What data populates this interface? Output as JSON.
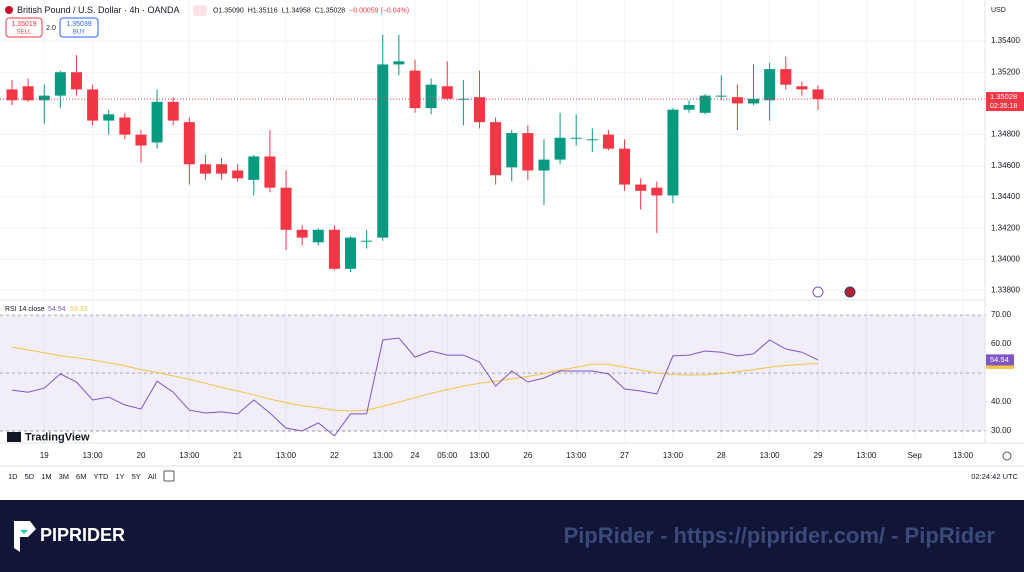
{
  "header": {
    "symbol": "British Pound / U.S. Dollar · 4h · OANDA",
    "ohlc": [
      "O1.35090",
      "H1.35116",
      "L1.34958",
      "C1.35028",
      "−0.00059 (−0.04%)"
    ],
    "sell_price": "1.35019",
    "sell": "SELL",
    "spread": "2.0",
    "buy_price": "1.35039",
    "buy": "BUY",
    "currency": "USD",
    "price_label": "1.35028",
    "countdown": "02:35:18",
    "logo": "TradingView"
  },
  "toolbar": {
    "ranges": [
      "1D",
      "5D",
      "1M",
      "3M",
      "6M",
      "YTD",
      "1Y",
      "5Y",
      "All"
    ],
    "clock": "02:24:42 UTC"
  },
  "banner": {
    "brand": "PIPRIDER",
    "watermark": "PipRider - https://piprider.com/ - PipRider"
  },
  "chart_data": [
    {
      "type": "candlestick",
      "up_color": "#089981",
      "down_color": "#f23645",
      "grid": true,
      "categories": [
        null,
        null,
        "19",
        null,
        null,
        "13:00",
        null,
        null,
        "20",
        null,
        null,
        "13:00",
        null,
        null,
        "21",
        null,
        null,
        "13:00",
        null,
        null,
        "22",
        null,
        null,
        "13:00",
        null,
        "24",
        null,
        "05:00",
        null,
        "13:00",
        null,
        null,
        "26",
        null,
        null,
        "13:00",
        null,
        null,
        "27",
        null,
        null,
        "13:00",
        null,
        null,
        "28",
        null,
        null,
        "13:00",
        null,
        null,
        "29",
        null,
        null,
        "13:00",
        null,
        null,
        "Sep",
        null,
        null,
        "13:00"
      ],
      "open": [
        1.3509,
        1.3511,
        1.3502,
        1.3505,
        1.352,
        1.3509,
        1.3489,
        1.3491,
        1.348,
        1.3475,
        1.3501,
        1.3488,
        1.3461,
        1.3461,
        1.3457,
        1.3451,
        1.3466,
        1.3446,
        1.3419,
        1.3411,
        1.3419,
        1.3394,
        1.3412,
        1.3414,
        1.3525,
        1.3521,
        1.3497,
        1.3511,
        1.3503,
        1.3504,
        1.3488,
        1.3459,
        1.3481,
        1.3457,
        1.3464,
        1.3478,
        1.3477,
        1.348,
        1.3471,
        1.3448,
        1.3446,
        1.3441,
        1.3496,
        1.3494,
        1.3505,
        1.3504,
        1.35,
        1.3502,
        1.3522,
        1.3511,
        1.3509,
        null,
        null,
        null,
        null,
        null,
        null,
        null,
        null,
        null
      ],
      "high": [
        1.3515,
        1.3516,
        1.3512,
        1.3521,
        1.3531,
        1.3512,
        1.3496,
        1.3494,
        1.3483,
        1.3509,
        1.3504,
        1.3491,
        1.3467,
        1.3465,
        1.3461,
        1.3467,
        1.3483,
        1.3457,
        1.3422,
        1.342,
        1.3422,
        1.3415,
        1.3419,
        1.3544,
        1.3544,
        1.3528,
        1.3516,
        1.3527,
        1.3515,
        1.3521,
        1.3491,
        1.3483,
        1.3486,
        1.3477,
        1.3494,
        1.3493,
        1.3484,
        1.3483,
        1.3477,
        1.3452,
        1.345,
        1.3497,
        1.3502,
        1.3506,
        1.3518,
        1.3512,
        1.3525,
        1.3526,
        1.353,
        1.3514,
        1.35116,
        null,
        null,
        null,
        null,
        null,
        null,
        null,
        null,
        null
      ],
      "low": [
        1.3499,
        1.3501,
        1.3487,
        1.3497,
        1.3505,
        1.3486,
        1.348,
        1.3477,
        1.3462,
        1.3471,
        1.3486,
        1.3448,
        1.3451,
        1.3451,
        1.345,
        1.3441,
        1.3443,
        1.3406,
        1.3409,
        1.3409,
        1.3393,
        1.3392,
        1.3407,
        1.3412,
        1.3518,
        1.3494,
        1.3493,
        1.3502,
        1.3486,
        1.3484,
        1.3448,
        1.345,
        1.3451,
        1.3435,
        1.3461,
        1.3473,
        1.3469,
        1.347,
        1.3444,
        1.3432,
        1.3417,
        1.3436,
        1.3494,
        1.3493,
        1.3502,
        1.3483,
        1.3499,
        1.3489,
        1.3509,
        1.3505,
        1.34958,
        null,
        null,
        null,
        null,
        null,
        null,
        null,
        null,
        null
      ],
      "close": [
        1.3502,
        1.3502,
        1.3505,
        1.352,
        1.3509,
        1.3489,
        1.3493,
        1.348,
        1.3473,
        1.3501,
        1.3489,
        1.3461,
        1.3455,
        1.3455,
        1.3452,
        1.3466,
        1.3446,
        1.3419,
        1.3414,
        1.3419,
        1.3394,
        1.3414,
        1.3412,
        1.3525,
        1.3527,
        1.3497,
        1.3512,
        1.3503,
        1.3503,
        1.3488,
        1.3454,
        1.3481,
        1.3457,
        1.3464,
        1.3478,
        1.3478,
        1.3477,
        1.3471,
        1.3448,
        1.3444,
        1.3441,
        1.3496,
        1.3499,
        1.3505,
        1.3505,
        1.35,
        1.3503,
        1.3522,
        1.3512,
        1.3509,
        1.35028,
        null,
        null,
        null,
        null,
        null,
        null,
        null,
        null,
        null
      ],
      "ylim": [
        1.3374,
        1.35663
      ],
      "yticks": [
        {
          "value": 1.354,
          "label": "1.35400"
        },
        {
          "value": 1.352,
          "label": "1.35200"
        },
        {
          "value": 1.348,
          "label": "1.34800"
        },
        {
          "value": 1.346,
          "label": "1.34600"
        },
        {
          "value": 1.344,
          "label": "1.34400"
        },
        {
          "value": 1.342,
          "label": "1.34200"
        },
        {
          "value": 1.34,
          "label": "1.34000"
        },
        {
          "value": 1.338,
          "label": "1.33800"
        }
      ]
    },
    {
      "type": "line",
      "legend": "RSI 14 close",
      "legend_values": [
        "54.54",
        "53.33"
      ],
      "band_color": "#7e57c2",
      "series": [
        {
          "color": "#7e57c2",
          "values": [
            44.1,
            43.4,
            44.8,
            49.7,
            46.9,
            40.7,
            41.7,
            39.0,
            37.6,
            47.2,
            43.4,
            37.2,
            36.2,
            36.6,
            35.9,
            40.7,
            36.2,
            31.0,
            30.0,
            32.8,
            28.3,
            35.9,
            35.9,
            61.4,
            62.1,
            55.5,
            57.6,
            56.2,
            56.2,
            53.8,
            45.5,
            50.7,
            46.9,
            48.3,
            50.7,
            50.7,
            50.7,
            49.7,
            44.5,
            43.8,
            42.8,
            55.9,
            56.2,
            57.6,
            57.2,
            55.9,
            56.6,
            61.4,
            58.3,
            57.2,
            54.54,
            null,
            null,
            null,
            null,
            null,
            null,
            null,
            null,
            null
          ]
        },
        {
          "color": "#f5c243",
          "values": [
            59.0,
            58.0,
            57.0,
            56.0,
            55.3,
            54.5,
            53.5,
            52.5,
            51.2,
            50.2,
            49.0,
            47.8,
            46.5,
            45.0,
            43.8,
            42.5,
            41.0,
            39.8,
            38.7,
            38.0,
            37.2,
            36.9,
            37.2,
            38.5,
            40.0,
            41.5,
            43.0,
            44.3,
            45.5,
            46.5,
            47.2,
            48.0,
            48.8,
            49.8,
            51.0,
            52.0,
            53.0,
            53.0,
            52.0,
            51.0,
            50.0,
            49.5,
            49.3,
            49.4,
            49.8,
            50.5,
            51.2,
            52.0,
            52.6,
            53.0,
            53.33,
            null,
            null,
            null,
            null,
            null,
            null,
            null,
            null,
            null
          ]
        }
      ],
      "ylim": [
        26.9,
        75.2
      ],
      "band": [
        30,
        70
      ],
      "midline": 50,
      "yticks": [
        {
          "value": 70,
          "label": "70.00"
        },
        {
          "value": 60,
          "label": "60.00"
        },
        {
          "value": 40,
          "label": "40.00"
        },
        {
          "value": 30,
          "label": "30.00"
        }
      ]
    }
  ]
}
